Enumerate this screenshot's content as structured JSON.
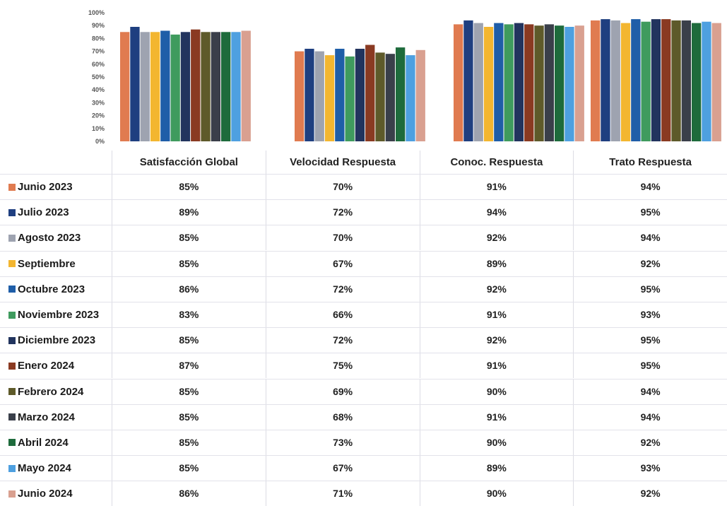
{
  "chart_data": {
    "type": "bar",
    "categories": [
      "Satisfacción Global",
      "Velocidad Respuesta",
      "Conoc. Respuesta",
      "Trato Respuesta"
    ],
    "yticks": [
      "100%",
      "90%",
      "80%",
      "70%",
      "60%",
      "50%",
      "40%",
      "30%",
      "20%",
      "10%",
      "0%"
    ],
    "ylim": [
      0,
      100
    ],
    "series": [
      {
        "name": "Junio 2023",
        "color": "#e07b50",
        "values": [
          85,
          70,
          91,
          94
        ],
        "labels": [
          "85%",
          "70%",
          "91%",
          "94%"
        ]
      },
      {
        "name": "Julio 2023",
        "color": "#1f3f80",
        "values": [
          89,
          72,
          94,
          95
        ],
        "labels": [
          "89%",
          "72%",
          "94%",
          "95%"
        ]
      },
      {
        "name": "Agosto  2023",
        "color": "#9ea3b0",
        "values": [
          85,
          70,
          92,
          94
        ],
        "labels": [
          "85%",
          "70%",
          "92%",
          "94%"
        ]
      },
      {
        "name": "Septiembre",
        "color": "#f3b630",
        "values": [
          85,
          67,
          89,
          92
        ],
        "labels": [
          "85%",
          "67%",
          "89%",
          "92%"
        ]
      },
      {
        "name": "Octubre 2023",
        "color": "#1f5ea8",
        "values": [
          86,
          72,
          92,
          95
        ],
        "labels": [
          "86%",
          "72%",
          "92%",
          "95%"
        ]
      },
      {
        "name": "Noviembre 2023",
        "color": "#3f9b5e",
        "values": [
          83,
          66,
          91,
          93
        ],
        "labels": [
          "83%",
          "66%",
          "91%",
          "93%"
        ]
      },
      {
        "name": "Diciembre 2023",
        "color": "#22345e",
        "values": [
          85,
          72,
          92,
          95
        ],
        "labels": [
          "85%",
          "72%",
          "92%",
          "95%"
        ]
      },
      {
        "name": "Enero 2024",
        "color": "#8a3a22",
        "values": [
          87,
          75,
          91,
          95
        ],
        "labels": [
          "87%",
          "75%",
          "91%",
          "95%"
        ]
      },
      {
        "name": "Febrero 2024",
        "color": "#5e5a2a",
        "values": [
          85,
          69,
          90,
          94
        ],
        "labels": [
          "85%",
          "69%",
          "90%",
          "94%"
        ]
      },
      {
        "name": "Marzo  2024",
        "color": "#3a3f4a",
        "values": [
          85,
          68,
          91,
          94
        ],
        "labels": [
          "85%",
          "68%",
          "91%",
          "94%"
        ]
      },
      {
        "name": "Abril  2024",
        "color": "#1e6b3c",
        "values": [
          85,
          73,
          90,
          92
        ],
        "labels": [
          "85%",
          "73%",
          "90%",
          "92%"
        ]
      },
      {
        "name": "Mayo 2024",
        "color": "#4ea0e0",
        "values": [
          85,
          67,
          89,
          93
        ],
        "labels": [
          "85%",
          "67%",
          "89%",
          "93%"
        ]
      },
      {
        "name": "Junio 2024",
        "color": "#d9a090",
        "values": [
          86,
          71,
          90,
          92
        ],
        "labels": [
          "86%",
          "71%",
          "90%",
          "92%"
        ]
      }
    ]
  }
}
